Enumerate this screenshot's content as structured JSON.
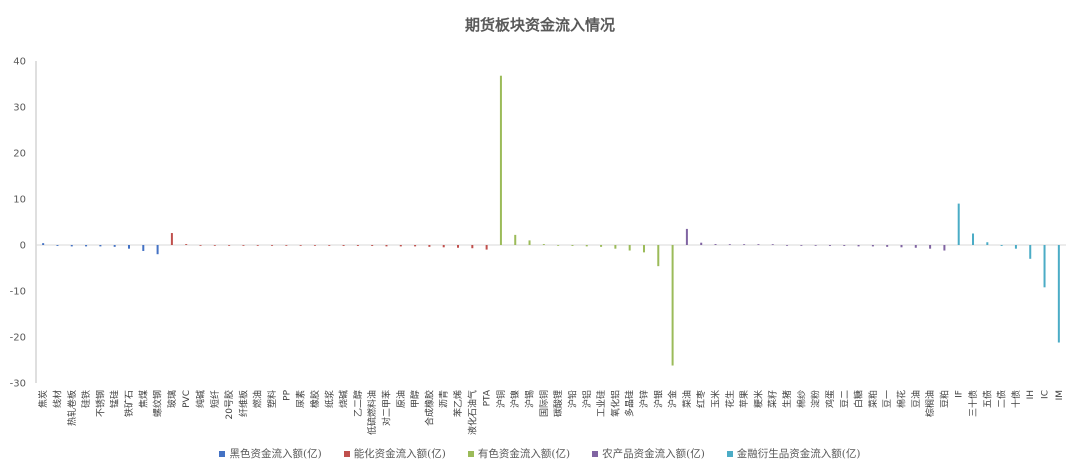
{
  "chart_data": {
    "type": "bar",
    "title": "期货板块资金流入情况",
    "ylim": [
      -30,
      40
    ],
    "yticks": [
      -30,
      -20,
      -10,
      0,
      10,
      20,
      30,
      40
    ],
    "grid": false,
    "legend_position": "bottom",
    "categories": [
      "焦炭",
      "线材",
      "热轧卷板",
      "硅铁",
      "不锈钢",
      "锰硅",
      "铁矿石",
      "焦煤",
      "螺纹钢",
      "玻璃",
      "PVC",
      "纯碱",
      "短纤",
      "20号胶",
      "纤维板",
      "燃油",
      "塑料",
      "PP",
      "尿素",
      "橡胶",
      "纸浆",
      "烧碱",
      "乙二醇",
      "低硫燃料油",
      "对二甲苯",
      "原油",
      "甲醇",
      "合成橡胶",
      "沥青",
      "苯乙烯",
      "液化石油气",
      "PTA",
      "沪铜",
      "沪镍",
      "沪锡",
      "国际铜",
      "碳酸锂",
      "沪铅",
      "沪铝",
      "工业硅",
      "氧化铝",
      "多晶硅",
      "沪锌",
      "沪银",
      "沪金",
      "菜油",
      "红枣",
      "玉米",
      "花生",
      "苹果",
      "粳米",
      "菜籽",
      "生猪",
      "棉纱",
      "淀粉",
      "鸡蛋",
      "豆二",
      "白糖",
      "菜粕",
      "豆一",
      "棉花",
      "豆油",
      "棕榈油",
      "豆粕",
      "IF",
      "三十债",
      "五债",
      "二债",
      "十债",
      "IH",
      "IC",
      "IM"
    ],
    "series": [
      {
        "name": "黑色资金流入额(亿)",
        "color": "#4472C4",
        "values": [
          0.4,
          -0.2,
          -0.3,
          -0.3,
          -0.3,
          -0.4,
          -0.8,
          -1.3,
          -2.0,
          null,
          null,
          null,
          null,
          null,
          null,
          null,
          null,
          null,
          null,
          null,
          null,
          null,
          null,
          null,
          null,
          null,
          null,
          null,
          null,
          null,
          null,
          null,
          null,
          null,
          null,
          null,
          null,
          null,
          null,
          null,
          null,
          null,
          null,
          null,
          null,
          null,
          null,
          null,
          null,
          null,
          null,
          null,
          null,
          null,
          null,
          null,
          null,
          null,
          null,
          null,
          null,
          null,
          null,
          null,
          null,
          null,
          null,
          null,
          null,
          null,
          null,
          null
        ]
      },
      {
        "name": "能化资金流入额(亿)",
        "color": "#C0504D",
        "values": [
          null,
          null,
          null,
          null,
          null,
          null,
          null,
          null,
          null,
          2.6,
          0.2,
          -0.1,
          -0.1,
          -0.1,
          -0.1,
          -0.1,
          -0.1,
          -0.1,
          -0.1,
          -0.1,
          -0.1,
          -0.2,
          -0.2,
          -0.2,
          -0.3,
          -0.3,
          -0.3,
          -0.4,
          -0.5,
          -0.6,
          -0.7,
          -1.0,
          null,
          null,
          null,
          null,
          null,
          null,
          null,
          null,
          null,
          null,
          null,
          null,
          null,
          null,
          null,
          null,
          null,
          null,
          null,
          null,
          null,
          null,
          null,
          null,
          null,
          null,
          null,
          null,
          null,
          null,
          null,
          null,
          null,
          null,
          null,
          null,
          null,
          null,
          null,
          null
        ]
      },
      {
        "name": "有色资金流入额(亿)",
        "color": "#9BBB59",
        "values": [
          null,
          null,
          null,
          null,
          null,
          null,
          null,
          null,
          null,
          null,
          null,
          null,
          null,
          null,
          null,
          null,
          null,
          null,
          null,
          null,
          null,
          null,
          null,
          null,
          null,
          null,
          null,
          null,
          null,
          null,
          null,
          null,
          36.8,
          2.2,
          1.0,
          0.2,
          -0.1,
          -0.2,
          -0.3,
          -0.4,
          -0.8,
          -1.2,
          -1.6,
          -4.6,
          -26.2,
          null,
          null,
          null,
          null,
          null,
          null,
          null,
          null,
          null,
          null,
          null,
          null,
          null,
          null,
          null,
          null,
          null,
          null,
          null,
          null,
          null,
          null,
          null,
          null,
          null,
          null,
          null
        ]
      },
      {
        "name": "农产品资金流入额(亿)",
        "color": "#8064A2",
        "values": [
          null,
          null,
          null,
          null,
          null,
          null,
          null,
          null,
          null,
          null,
          null,
          null,
          null,
          null,
          null,
          null,
          null,
          null,
          null,
          null,
          null,
          null,
          null,
          null,
          null,
          null,
          null,
          null,
          null,
          null,
          null,
          null,
          null,
          null,
          null,
          null,
          null,
          null,
          null,
          null,
          null,
          null,
          null,
          null,
          null,
          3.5,
          0.5,
          0.2,
          0.1,
          0.1,
          0.1,
          0.0,
          -0.1,
          -0.1,
          -0.1,
          -0.2,
          -0.2,
          -0.3,
          -0.3,
          -0.4,
          -0.5,
          -0.6,
          -0.8,
          -1.2,
          null,
          null,
          null,
          null,
          null,
          null,
          null,
          null
        ]
      },
      {
        "name": "金融衍生品资金流入额(亿)",
        "color": "#4BACC6",
        "values": [
          null,
          null,
          null,
          null,
          null,
          null,
          null,
          null,
          null,
          null,
          null,
          null,
          null,
          null,
          null,
          null,
          null,
          null,
          null,
          null,
          null,
          null,
          null,
          null,
          null,
          null,
          null,
          null,
          null,
          null,
          null,
          null,
          null,
          null,
          null,
          null,
          null,
          null,
          null,
          null,
          null,
          null,
          null,
          null,
          null,
          null,
          null,
          null,
          null,
          null,
          null,
          null,
          null,
          null,
          null,
          null,
          null,
          null,
          null,
          null,
          null,
          null,
          null,
          null,
          9.0,
          2.5,
          0.6,
          -0.2,
          -0.8,
          -3.0,
          -9.2,
          -21.2
        ]
      }
    ]
  }
}
